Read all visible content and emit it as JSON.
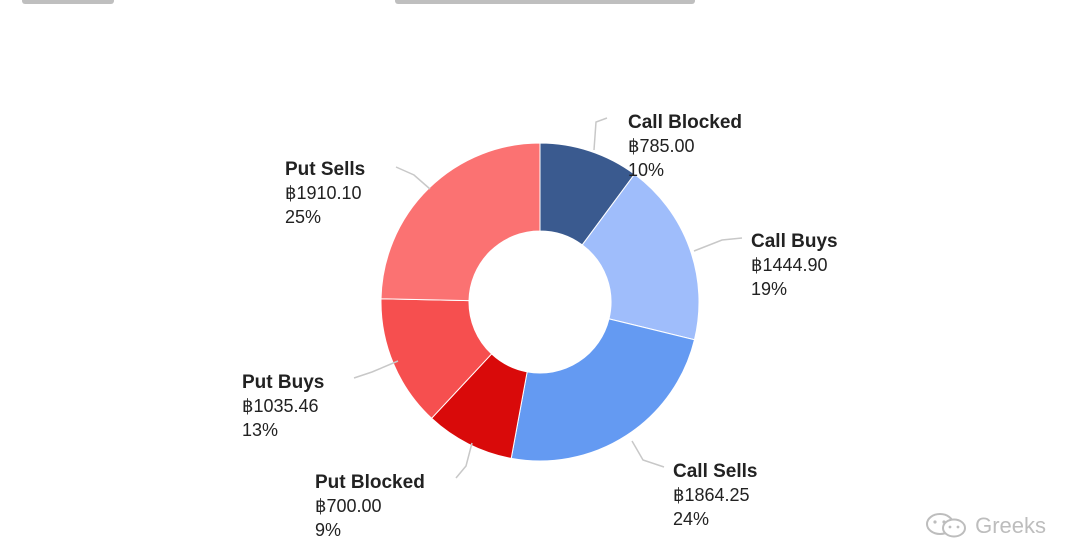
{
  "chart_data": {
    "type": "pie",
    "donut": true,
    "title": "",
    "currency_symbol": "฿",
    "slices": [
      {
        "name": "Call Blocked",
        "value": "785.00",
        "value_num": 785.0,
        "percent": "10%",
        "color": "#3a5a8f"
      },
      {
        "name": "Call Buys",
        "value": "1444.90",
        "value_num": 1444.9,
        "percent": "19%",
        "color": "#9fbdfb"
      },
      {
        "name": "Call Sells",
        "value": "1864.25",
        "value_num": 1864.25,
        "percent": "24%",
        "color": "#649af2"
      },
      {
        "name": "Put Blocked",
        "value": "700.00",
        "value_num": 700.0,
        "percent": "9%",
        "color": "#d90a0a"
      },
      {
        "name": "Put Buys",
        "value": "1035.46",
        "value_num": 1035.46,
        "percent": "13%",
        "color": "#f64f4f"
      },
      {
        "name": "Put Sells",
        "value": "1910.10",
        "value_num": 1910.1,
        "percent": "25%",
        "color": "#fb7272"
      }
    ]
  },
  "watermark": {
    "text": "Greeks",
    "icon": "wechat-icon"
  }
}
